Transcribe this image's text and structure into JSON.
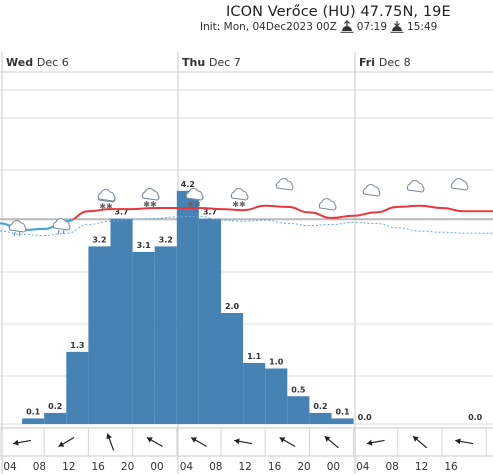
{
  "header": {
    "title": "ICON Verőce (HU) 47.75N, 19E",
    "init": "Init: Mon, 04Dec2023 00Z",
    "sunrise": "07:19",
    "sunset": "15:49",
    "sunrise_icon": "sunrise-icon",
    "sunset_icon": "sunset-icon"
  },
  "days": [
    {
      "name": "Wed",
      "date": "Dec 6"
    },
    {
      "name": "Thu",
      "date": "Dec 7"
    },
    {
      "name": "Fri",
      "date": "Dec 8"
    }
  ],
  "chart_data": {
    "type": "bar",
    "title": "ICON Verőce (HU) 47.75N, 19E",
    "x_tick_labels": [
      "04",
      "08",
      "12",
      "16",
      "20",
      "00",
      "04",
      "08",
      "12",
      "16",
      "20",
      "00",
      "04",
      "08",
      "12",
      "16"
    ],
    "colors": {
      "bars": "#4682b4",
      "temp_above": "#e8383d",
      "temp_below": "#3aa0dc",
      "dew": "#6ca7d8",
      "grid": "#dcdcdc",
      "zero_line": "#999999"
    },
    "grid": true,
    "series": [
      {
        "label_kind": "precipitation",
        "values": [
          null,
          0.1,
          0.2,
          1.3,
          3.2,
          3.7,
          3.1,
          3.2,
          4.2,
          3.7,
          2.0,
          1.1,
          1.0,
          0.5,
          0.2,
          0.1,
          0.0,
          null,
          null,
          null,
          null,
          0.0
        ],
        "labels": [
          "",
          "0.1",
          "0.2",
          "1.3",
          "3.2",
          "3.7",
          "3.1",
          "3.2",
          "4.2",
          "3.7",
          "2.0",
          "1.1",
          "1.0",
          "0.5",
          "0.2",
          "0.1",
          "0.0",
          "",
          "",
          "",
          "",
          "0.0"
        ]
      }
    ],
    "temperature_rel": [
      -0.2,
      -0.5,
      -0.45,
      -0.1,
      0.35,
      0.45,
      0.45,
      0.5,
      0.5,
      0.5,
      0.45,
      0.4,
      0.6,
      0.55,
      0.3,
      0.05,
      0.15,
      0.3,
      0.55,
      0.6,
      0.5,
      0.35
    ],
    "dewpoint_rel": [
      -0.55,
      -0.7,
      -0.75,
      -0.65,
      -0.25,
      -0.1,
      0.0,
      0.02,
      0.1,
      0.12,
      -0.05,
      -0.1,
      -0.05,
      -0.2,
      -0.3,
      -0.25,
      -0.15,
      -0.2,
      -0.4,
      -0.55,
      -0.6,
      -0.65
    ],
    "weather_icons": [
      "rain-cloud-icon",
      "rain-cloud-icon",
      "snow-cloud-icon",
      "cloud-icon",
      "snow-cloud-icon",
      "snow-cloud-icon",
      "snow-cloud-icon",
      "cloud-icon",
      "snow-cloud-icon",
      "cloud-icon",
      "cloud-icon",
      "cloud-icon",
      "cloud-icon",
      "cloud-icon"
    ],
    "wind_directions_deg": [
      80,
      80,
      60,
      60,
      160,
      160,
      120,
      120,
      120,
      120,
      100,
      100,
      120,
      120,
      130,
      130,
      80,
      80,
      130,
      130,
      100,
      100
    ]
  }
}
